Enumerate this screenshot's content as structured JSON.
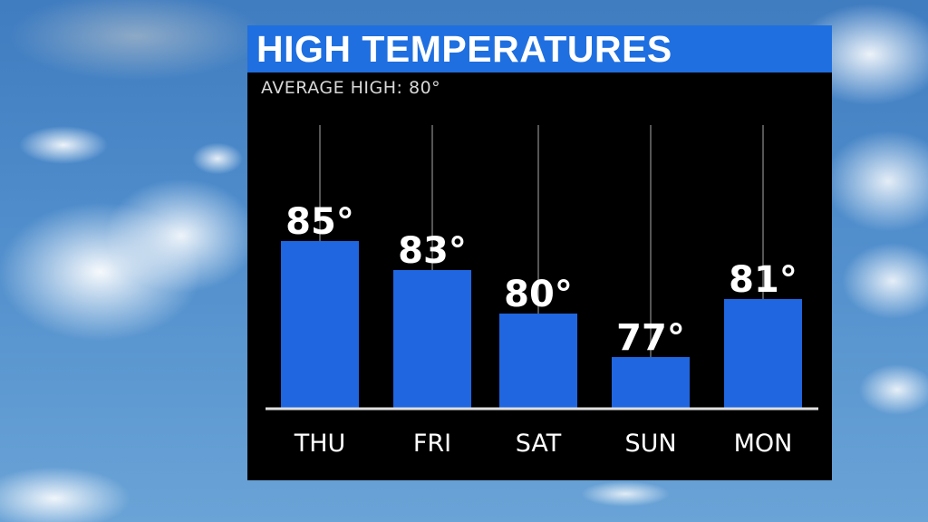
{
  "chart_data": {
    "type": "bar",
    "title": "HIGH TEMPERATURES",
    "subtitle": "AVERAGE HIGH:  80°",
    "categories": [
      "THU",
      "FRI",
      "SAT",
      "SUN",
      "MON"
    ],
    "values": [
      85,
      83,
      80,
      77,
      81
    ],
    "data_labels": [
      "85°",
      "83°",
      "80°",
      "77°",
      "81°"
    ],
    "unit": "°F",
    "ylim": [
      73.5,
      93
    ],
    "grid": false,
    "legend": "none",
    "colors": {
      "bar": "#1f66e0",
      "title_bar": "#1f6fe0",
      "panel": "#000000",
      "text": "#ffffff",
      "guide_line": "#555555"
    }
  }
}
